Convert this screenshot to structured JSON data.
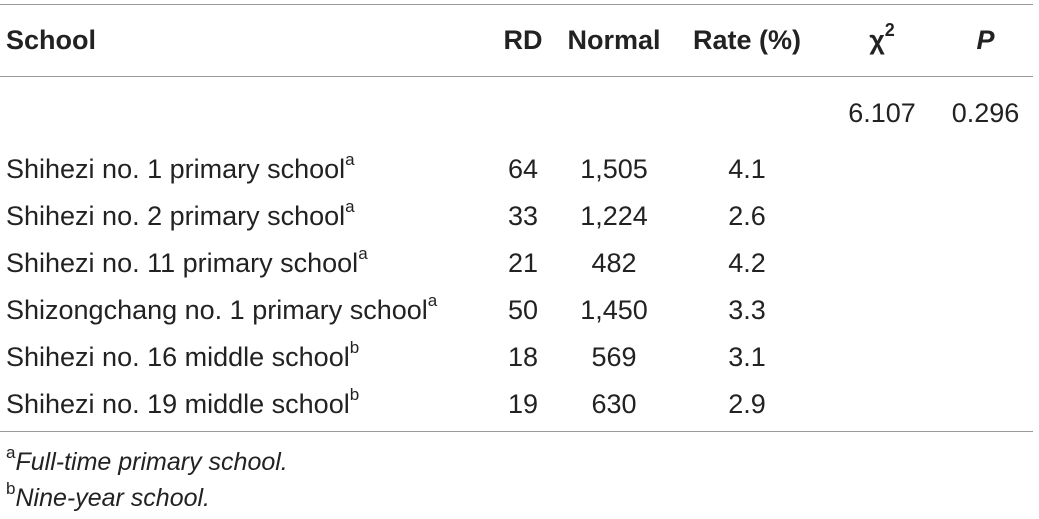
{
  "table": {
    "headers": {
      "school": "School",
      "rd": "RD",
      "normal": "Normal",
      "rate": "Rate (%)",
      "chi_base": "χ",
      "chi_sup": "2",
      "p": "P"
    },
    "stat_row": {
      "chi_square": "6.107",
      "p_value": "0.296"
    },
    "rows": [
      {
        "school": "Shihezi no. 1 primary school",
        "note": "a",
        "rd": "64",
        "normal": "1,505",
        "rate": "4.1"
      },
      {
        "school": "Shihezi no. 2 primary school",
        "note": "a",
        "rd": "33",
        "normal": "1,224",
        "rate": "2.6"
      },
      {
        "school": "Shihezi no. 11 primary school",
        "note": "a",
        "rd": "21",
        "normal": "482",
        "rate": "4.2"
      },
      {
        "school": "Shizongchang no. 1 primary school",
        "note": "a",
        "rd": "50",
        "normal": "1,450",
        "rate": "3.3"
      },
      {
        "school": "Shihezi no. 16 middle school",
        "note": "b",
        "rd": "18",
        "normal": "569",
        "rate": "3.1"
      },
      {
        "school": "Shihezi no. 19 middle school",
        "note": "b",
        "rd": "19",
        "normal": "630",
        "rate": "2.9"
      }
    ]
  },
  "footnotes": [
    {
      "mark": "a",
      "text": "Full-time primary school."
    },
    {
      "mark": "b",
      "text": "Nine-year school."
    }
  ]
}
